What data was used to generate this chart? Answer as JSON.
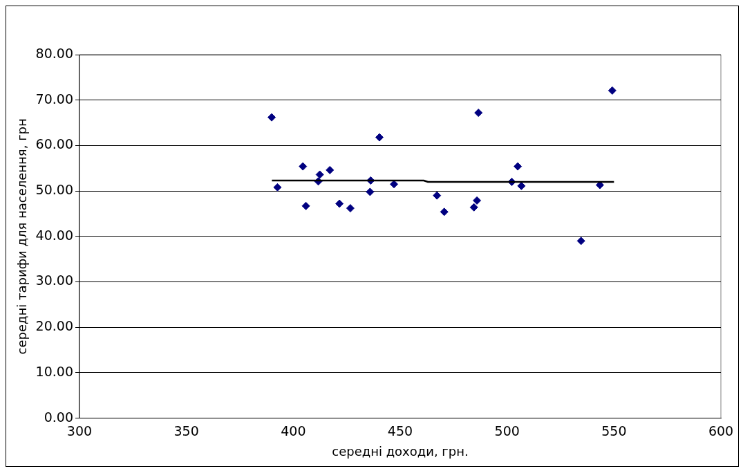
{
  "chart_data": {
    "type": "scatter",
    "xlabel": "середні доходи, грн.",
    "ylabel": "середні тарифи для населення, грн",
    "xlim": [
      300,
      600
    ],
    "xticks": [
      300,
      350,
      400,
      450,
      500,
      550,
      600
    ],
    "ylim": [
      0,
      80
    ],
    "yticks": [
      {
        "value": 0,
        "label": "0.00"
      },
      {
        "value": 10,
        "label": "10.00"
      },
      {
        "value": 20,
        "label": "20.00"
      },
      {
        "value": 30,
        "label": "30.00"
      },
      {
        "value": 40,
        "label": "40.00"
      },
      {
        "value": 50,
        "label": "50.00"
      },
      {
        "value": 60,
        "label": "60.00"
      },
      {
        "value": 70,
        "label": "70.00"
      },
      {
        "value": 80,
        "label": "80.00"
      }
    ],
    "grid": "y",
    "legend": false,
    "marker": "diamond",
    "series": [
      {
        "type": "scatter",
        "color": "#000080",
        "x": [
          389.9,
          392.6,
          404.5,
          405.9,
          411.7,
          412.4,
          417.1,
          421.6,
          426.7,
          435.9,
          436.2,
          440.3,
          447.1,
          467.2,
          470.6,
          484.5,
          485.9,
          486.6,
          502.2,
          505.0,
          506.7,
          534.6,
          543.4,
          549.2
        ],
        "values": [
          66.2,
          50.8,
          55.4,
          46.7,
          52.1,
          53.6,
          54.6,
          47.2,
          46.2,
          49.8,
          52.3,
          61.8,
          51.5,
          49.0,
          45.4,
          46.4,
          47.9,
          67.2,
          52.0,
          55.4,
          51.1,
          39.0,
          51.3,
          72.1
        ]
      },
      {
        "type": "line",
        "color": "#000000",
        "marker": "none",
        "x": [
          390,
          461,
          463,
          550
        ],
        "values": [
          52.3,
          52.3,
          52.0,
          52.0
        ]
      }
    ]
  }
}
